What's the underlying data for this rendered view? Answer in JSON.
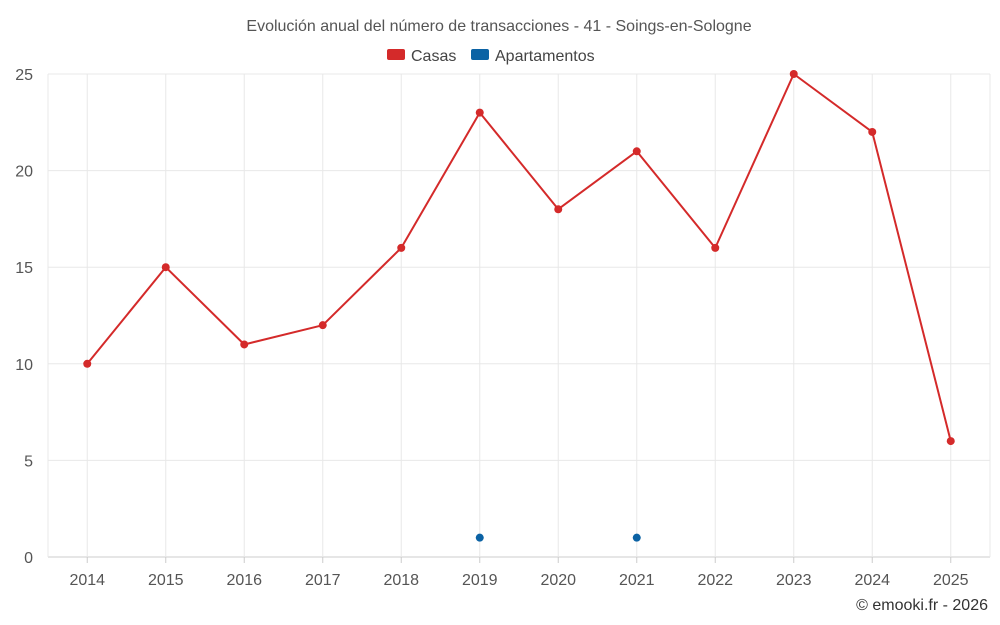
{
  "chart_data": {
    "type": "line",
    "title": "Evolución anual del número de transacciones - 41 - Soings-en-Sologne",
    "xlabel": "",
    "ylabel": "",
    "categories": [
      "2014",
      "2015",
      "2016",
      "2017",
      "2018",
      "2019",
      "2020",
      "2021",
      "2022",
      "2023",
      "2024",
      "2025"
    ],
    "ylim": [
      0,
      25
    ],
    "yticks": [
      0,
      5,
      10,
      15,
      20,
      25
    ],
    "grid": true,
    "legend_position": "top-center",
    "series": [
      {
        "name": "Casas",
        "color": "#d42a2a",
        "values": [
          10,
          15,
          11,
          12,
          16,
          23,
          18,
          21,
          16,
          25,
          22,
          6
        ]
      },
      {
        "name": "Apartamentos",
        "color": "#0b62a4",
        "values": [
          null,
          null,
          null,
          null,
          null,
          1,
          null,
          1,
          null,
          null,
          null,
          null
        ]
      }
    ]
  },
  "footer": "© emooki.fr - 2026"
}
